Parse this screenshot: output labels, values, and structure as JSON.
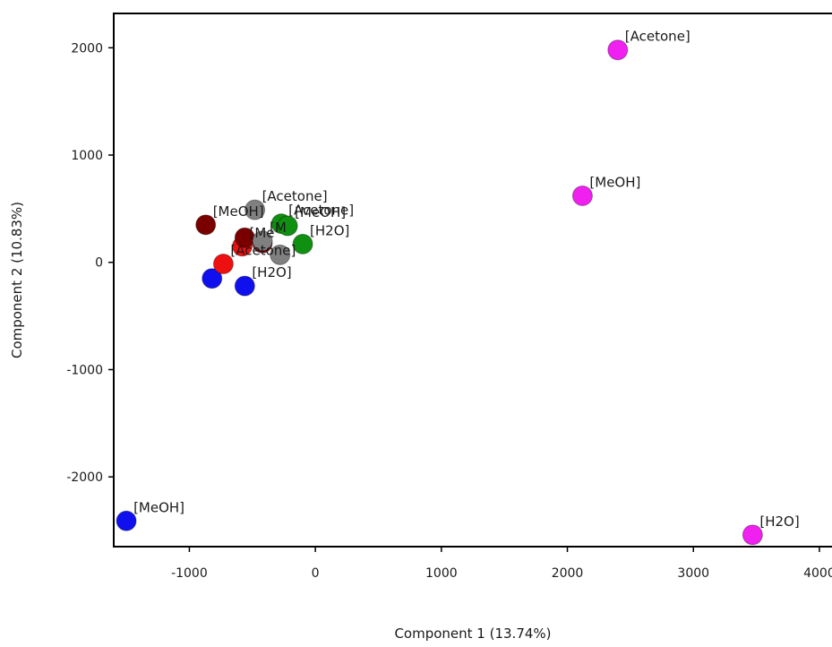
{
  "chart_data": {
    "type": "scatter",
    "title": "",
    "xlabel": "Component 1 (13.74%)",
    "ylabel": "Component 2 (10.83%)",
    "xlim": [
      -1600,
      4100
    ],
    "ylim": [
      -2650,
      2320
    ],
    "xticks": [
      -1000,
      0,
      1000,
      2000,
      3000,
      4000
    ],
    "yticks": [
      -2000,
      -1000,
      0,
      1000,
      2000
    ],
    "grid": false,
    "legend": "none",
    "series": [
      {
        "color": "#f020f0",
        "points": [
          {
            "x": 2400,
            "y": 1980,
            "label": "[Acetone]"
          },
          {
            "x": 2120,
            "y": 620,
            "label": "[MeOH]"
          },
          {
            "x": 3470,
            "y": -2540,
            "label": "[H2O]"
          }
        ]
      },
      {
        "color": "#1010ee",
        "points": [
          {
            "x": -1500,
            "y": -2410,
            "label": "[MeOH]"
          },
          {
            "x": -820,
            "y": -150,
            "label": ""
          },
          {
            "x": -560,
            "y": -220,
            "label": "[H2O]"
          }
        ]
      },
      {
        "color": "#ee1010",
        "points": [
          {
            "x": -730,
            "y": -15,
            "label": "[Acetone]"
          },
          {
            "x": -580,
            "y": 150,
            "label": "[Me"
          }
        ]
      },
      {
        "color": "#7a0000",
        "points": [
          {
            "x": -870,
            "y": 350,
            "label": "[MeOH]"
          },
          {
            "x": -560,
            "y": 230,
            "label": ""
          },
          {
            "x": -420,
            "y": 180,
            "label": ""
          }
        ]
      },
      {
        "color": "#808080",
        "points": [
          {
            "x": -480,
            "y": 490,
            "label": "[Acetone]"
          },
          {
            "x": -420,
            "y": 200,
            "label": "[M"
          },
          {
            "x": -280,
            "y": 70,
            "label": ""
          }
        ]
      },
      {
        "color": "#109010",
        "points": [
          {
            "x": -270,
            "y": 360,
            "label": "[Acetone]"
          },
          {
            "x": -220,
            "y": 340,
            "label": "[MeOH]"
          },
          {
            "x": -100,
            "y": 170,
            "label": "[H2O]"
          }
        ]
      }
    ]
  }
}
